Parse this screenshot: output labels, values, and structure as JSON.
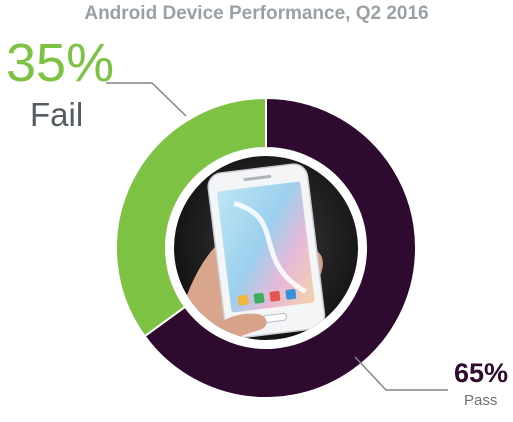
{
  "chart_data": {
    "type": "pie",
    "title": "Android Device Performance, Q2 2016",
    "categories": [
      "Fail",
      "Pass"
    ],
    "values": [
      35,
      65
    ],
    "value_labels": [
      "35%",
      "65%"
    ],
    "colors": [
      "#7dc243",
      "#2e0a2e"
    ],
    "style": "donut",
    "center_image": "hand-holding-smartphone"
  }
}
